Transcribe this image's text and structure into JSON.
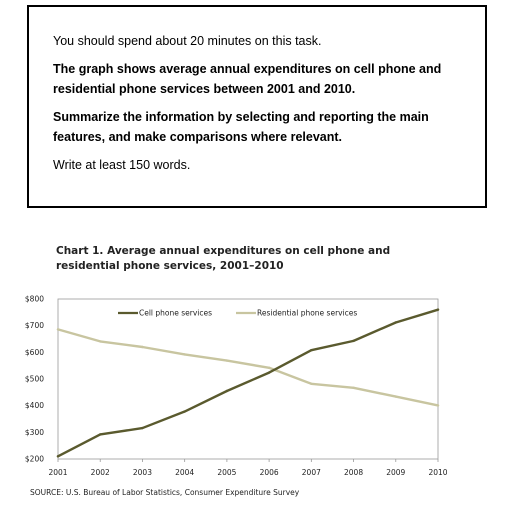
{
  "task": {
    "intro": "You should spend about 20 minutes on this task.",
    "prompt": "The graph shows average annual expenditures on cell phone and residential phone services between 2001 and 2010.",
    "instruction": "Summarize the information by selecting and reporting the main features, and make comparisons where relevant.",
    "word_count": "Write at least 150 words."
  },
  "source": "SOURCE: U.S. Bureau of Labor Statistics, Consumer Expenditure Survey",
  "chart_data": {
    "type": "line",
    "title": "Chart 1.  Average annual  expenditures on cell phone and residential phone services, 2001–2010",
    "xlabel": "",
    "ylabel": "",
    "x": [
      2001,
      2002,
      2003,
      2004,
      2005,
      2006,
      2007,
      2008,
      2009,
      2010
    ],
    "x_tick_labels": [
      "2001",
      "2002",
      "2003",
      "2004",
      "2005",
      "2006",
      "2007",
      "2008",
      "2009",
      "2010"
    ],
    "y_tick_values": [
      200,
      300,
      400,
      500,
      600,
      700,
      800
    ],
    "y_tick_labels": [
      "$200",
      "$300",
      "$400",
      "$500",
      "$600",
      "$700",
      "$800"
    ],
    "ylim": [
      200,
      800
    ],
    "grid": false,
    "legend_position": "top",
    "series": [
      {
        "name": "Cell phone services",
        "color": "#5a5a2e",
        "values": [
          210,
          292,
          316,
          378,
          455,
          524,
          608,
          643,
          712,
          760
        ]
      },
      {
        "name": "Residential phone services",
        "color": "#c8c5a0",
        "values": [
          686,
          641,
          620,
          592,
          569,
          542,
          482,
          467,
          434,
          401
        ]
      }
    ]
  }
}
